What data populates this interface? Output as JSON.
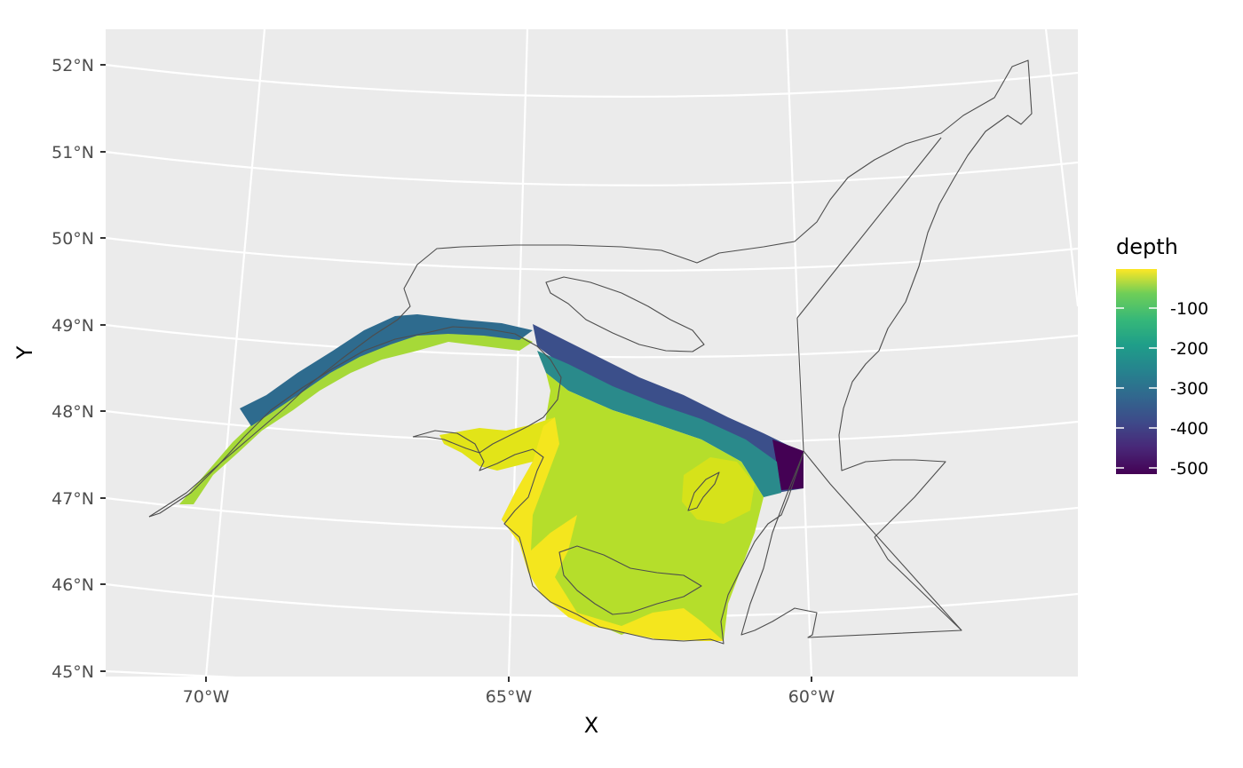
{
  "chart_data": {
    "type": "heatmap",
    "title": "",
    "xlabel": "X",
    "ylabel": "Y",
    "x_ticks": [
      "70°W",
      "65°W",
      "60°W"
    ],
    "y_ticks": [
      "52°N",
      "51°N",
      "50°N",
      "49°N",
      "48°N",
      "47°N",
      "46°N",
      "45°N"
    ],
    "xlim": [
      "71.7°W",
      "55.6°W"
    ],
    "ylim": [
      "45°N",
      "52.4°N"
    ],
    "grid": true,
    "panel_background": "#ebebeb",
    "legend": {
      "title": "depth",
      "placement": "right",
      "labels": [
        "-100",
        "-200",
        "-300",
        "-400",
        "-500"
      ],
      "range": [
        -520,
        -10
      ],
      "palette": [
        "#440154",
        "#3b528b",
        "#21908c",
        "#5dc863",
        "#fde725"
      ]
    },
    "raster_summary": {
      "variable": "depth",
      "description_of_pattern": "Deep Laurentian Channel (about -300 to -520) along the north, shallow Magdalen Shelf (about -20 to -100) in the southern gulf"
    }
  }
}
